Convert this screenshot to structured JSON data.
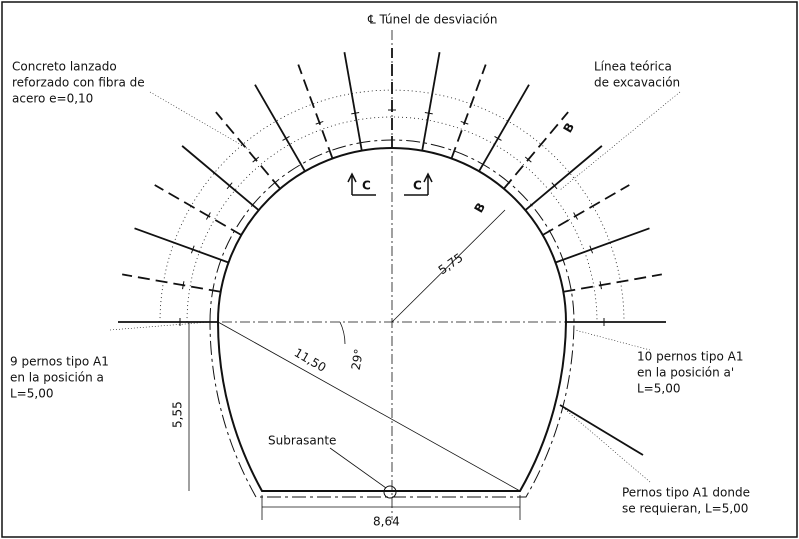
{
  "header": {
    "title": "℄ Túnel de desviación"
  },
  "notes": {
    "shotcrete": [
      "Concreto lanzado",
      "reforzado con fibra de",
      "acero e=0,10"
    ],
    "theoretical_line": [
      "Línea teórica",
      "de excavación"
    ],
    "bolts_left": [
      "9 pernos tipo A1",
      "en la posición a",
      "L=5,00"
    ],
    "bolts_right": [
      "10 pernos tipo A1",
      "en la posición a'",
      "L=5,00"
    ],
    "bolts_extra": [
      "Pernos tipo A1 donde",
      "se requieran, L=5,00"
    ]
  },
  "sections": {
    "b_upper": "B",
    "b_lower": "B",
    "c_left": "C",
    "c_right": "C"
  },
  "dimensions": {
    "radius_crown": "5,75",
    "radius_wall": "11,50",
    "angle": "29°",
    "height": "5,55",
    "width": "8,64",
    "grade": "Subrasante"
  }
}
